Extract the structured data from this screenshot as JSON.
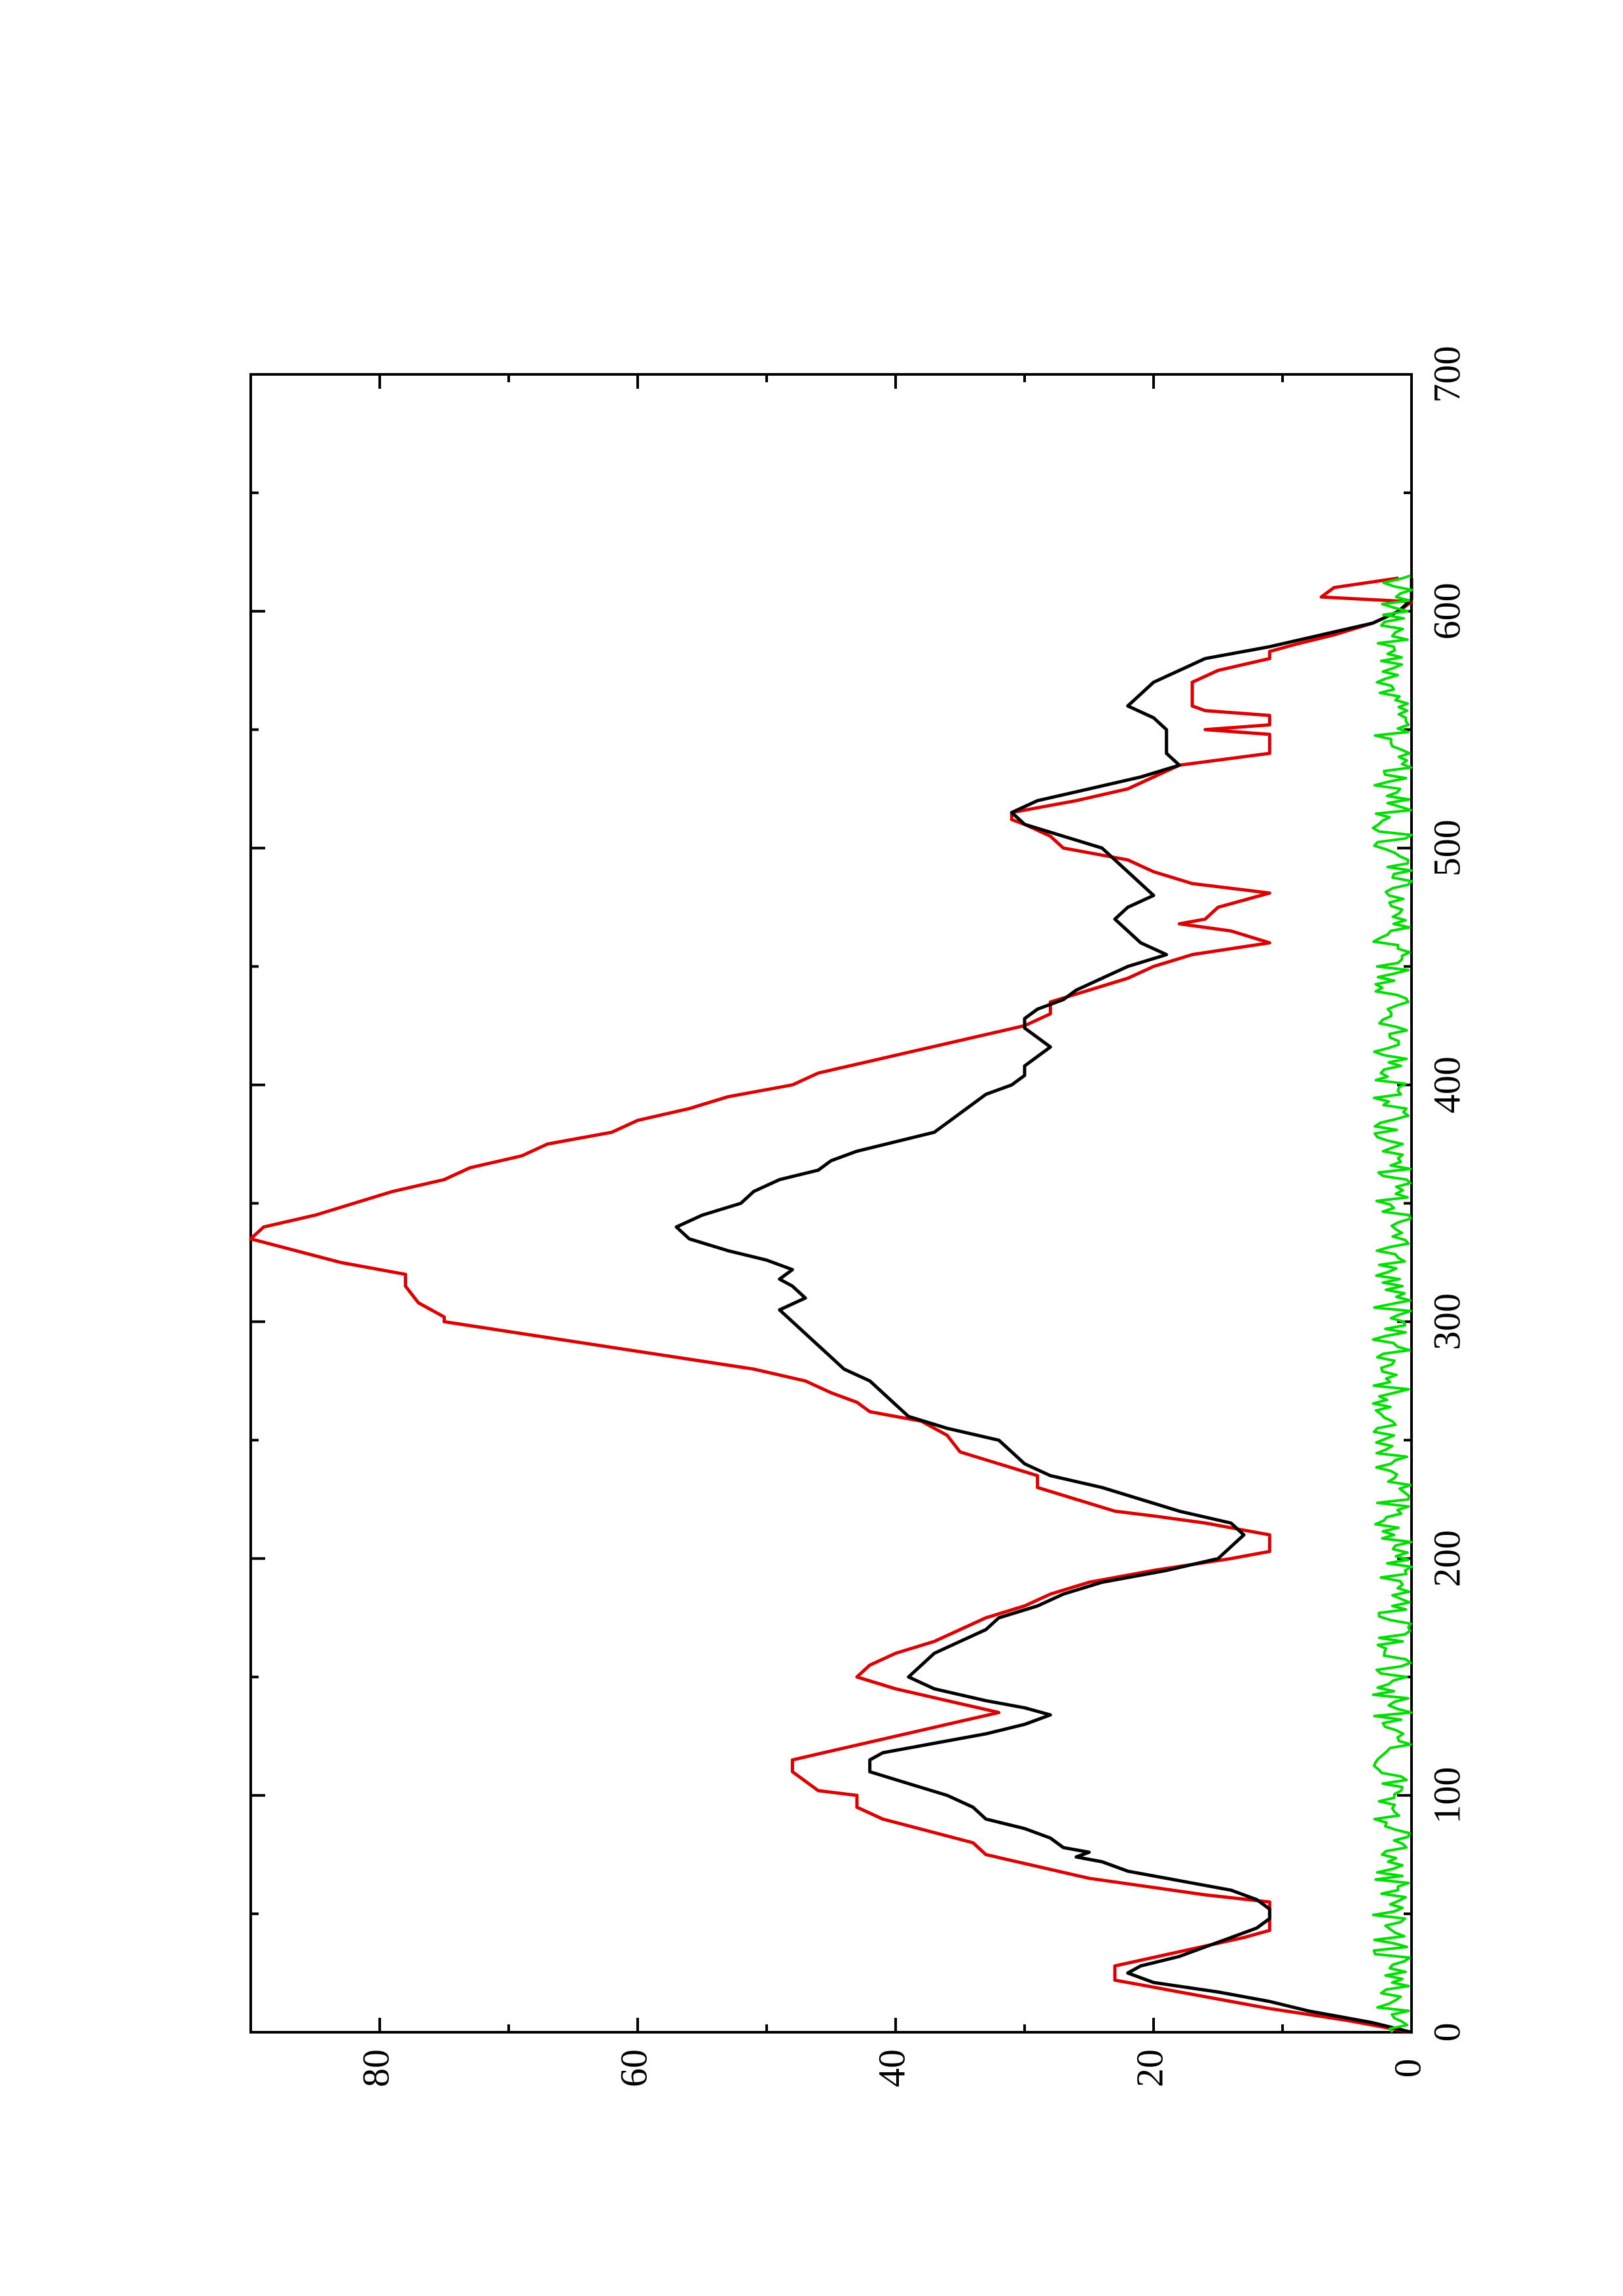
{
  "chart_data": {
    "type": "line",
    "orientation": "rotated-90-ccw",
    "title": "",
    "xlabel": "",
    "ylabel": "",
    "xlim": [
      0,
      700
    ],
    "ylim": [
      0,
      90
    ],
    "grid": false,
    "x_ticks": [
      "0",
      "100",
      "200",
      "300",
      "400",
      "500",
      "600",
      "700"
    ],
    "y_ticks": [
      "0",
      "20",
      "40",
      "60",
      "80"
    ],
    "series": [
      {
        "color": "#dd0000",
        "style": "step-like",
        "points": [
          [
            0,
            0
          ],
          [
            5,
            5
          ],
          [
            10,
            11
          ],
          [
            20,
            21
          ],
          [
            22,
            23
          ],
          [
            28,
            23
          ],
          [
            40,
            13
          ],
          [
            43,
            11
          ],
          [
            55,
            11
          ],
          [
            58,
            16
          ],
          [
            65,
            25
          ],
          [
            70,
            29
          ],
          [
            75,
            33
          ],
          [
            80,
            34
          ],
          [
            90,
            41
          ],
          [
            95,
            43
          ],
          [
            100,
            43
          ],
          [
            102,
            46
          ],
          [
            110,
            48
          ],
          [
            115,
            48
          ],
          [
            125,
            40
          ],
          [
            130,
            36
          ],
          [
            135,
            32
          ],
          [
            140,
            36
          ],
          [
            145,
            40
          ],
          [
            150,
            43
          ],
          [
            155,
            42
          ],
          [
            160,
            40
          ],
          [
            165,
            37
          ],
          [
            170,
            35
          ],
          [
            175,
            33
          ],
          [
            180,
            30
          ],
          [
            185,
            28
          ],
          [
            190,
            25
          ],
          [
            195,
            20
          ],
          [
            200,
            14
          ],
          [
            203,
            11
          ],
          [
            210,
            11
          ],
          [
            215,
            16
          ],
          [
            218,
            20
          ],
          [
            220,
            23
          ],
          [
            225,
            26
          ],
          [
            230,
            29
          ],
          [
            235,
            29
          ],
          [
            245,
            35
          ],
          [
            252,
            36
          ],
          [
            258,
            38
          ],
          [
            262,
            42
          ],
          [
            266,
            43
          ],
          [
            270,
            45
          ],
          [
            275,
            47
          ],
          [
            280,
            51
          ],
          [
            290,
            63
          ],
          [
            300,
            75
          ],
          [
            302,
            75
          ],
          [
            308,
            77
          ],
          [
            315,
            78
          ],
          [
            320,
            78
          ],
          [
            325,
            83
          ],
          [
            335,
            90
          ],
          [
            340,
            89
          ],
          [
            345,
            85
          ],
          [
            350,
            82
          ],
          [
            355,
            79
          ],
          [
            360,
            75
          ],
          [
            365,
            73
          ],
          [
            370,
            69
          ],
          [
            375,
            67
          ],
          [
            380,
            62
          ],
          [
            385,
            60
          ],
          [
            390,
            56
          ],
          [
            395,
            53
          ],
          [
            400,
            48
          ],
          [
            405,
            46
          ],
          [
            410,
            42
          ],
          [
            415,
            38
          ],
          [
            420,
            34
          ],
          [
            425,
            30
          ],
          [
            430,
            28
          ],
          [
            435,
            28
          ],
          [
            440,
            25
          ],
          [
            445,
            22
          ],
          [
            450,
            20
          ],
          [
            455,
            17
          ],
          [
            460,
            11
          ],
          [
            465,
            14
          ],
          [
            468,
            18
          ],
          [
            470,
            16
          ],
          [
            475,
            15
          ],
          [
            478,
            13
          ],
          [
            481,
            11
          ],
          [
            485,
            17
          ],
          [
            490,
            20
          ],
          [
            495,
            22
          ],
          [
            500,
            27
          ],
          [
            505,
            28
          ],
          [
            510,
            30
          ],
          [
            512,
            31
          ],
          [
            515,
            31
          ],
          [
            520,
            26
          ],
          [
            525,
            22
          ],
          [
            530,
            20
          ],
          [
            535,
            18
          ],
          [
            540,
            11
          ],
          [
            542,
            11
          ],
          [
            548,
            11
          ],
          [
            550,
            16
          ],
          [
            552,
            11
          ],
          [
            556,
            11
          ],
          [
            558,
            16
          ],
          [
            560,
            17
          ],
          [
            565,
            17
          ],
          [
            570,
            17
          ],
          [
            575,
            15
          ],
          [
            580,
            11
          ],
          [
            583,
            11
          ],
          [
            586,
            9
          ],
          [
            590,
            6
          ],
          [
            595,
            3
          ],
          [
            600,
            1
          ],
          [
            604,
            0
          ],
          [
            606,
            7
          ],
          [
            610,
            6
          ],
          [
            614,
            1
          ]
        ]
      },
      {
        "color": "#000000",
        "style": "solid",
        "points": [
          [
            0,
            0
          ],
          [
            4,
            3
          ],
          [
            9,
            8
          ],
          [
            13,
            11
          ],
          [
            17,
            15
          ],
          [
            21,
            20
          ],
          [
            25,
            22
          ],
          [
            28,
            21
          ],
          [
            32,
            18
          ],
          [
            36,
            16
          ],
          [
            40,
            14
          ],
          [
            44,
            12
          ],
          [
            48,
            11
          ],
          [
            52,
            11
          ],
          [
            56,
            12
          ],
          [
            60,
            14
          ],
          [
            64,
            18
          ],
          [
            68,
            22
          ],
          [
            72,
            24
          ],
          [
            74,
            26
          ],
          [
            76,
            25
          ],
          [
            78,
            27
          ],
          [
            82,
            28
          ],
          [
            86,
            30
          ],
          [
            90,
            33
          ],
          [
            95,
            34
          ],
          [
            100,
            36
          ],
          [
            105,
            39
          ],
          [
            110,
            42
          ],
          [
            115,
            42
          ],
          [
            118,
            41
          ],
          [
            122,
            37
          ],
          [
            126,
            33
          ],
          [
            130,
            30
          ],
          [
            134,
            28
          ],
          [
            137,
            30
          ],
          [
            140,
            33
          ],
          [
            145,
            37
          ],
          [
            150,
            39
          ],
          [
            155,
            38
          ],
          [
            160,
            37
          ],
          [
            165,
            35
          ],
          [
            170,
            33
          ],
          [
            175,
            32
          ],
          [
            180,
            29
          ],
          [
            185,
            27
          ],
          [
            190,
            24
          ],
          [
            195,
            19
          ],
          [
            200,
            15
          ],
          [
            205,
            14
          ],
          [
            210,
            13
          ],
          [
            215,
            14
          ],
          [
            220,
            18
          ],
          [
            225,
            21
          ],
          [
            230,
            24
          ],
          [
            235,
            28
          ],
          [
            240,
            30
          ],
          [
            245,
            31
          ],
          [
            250,
            32
          ],
          [
            255,
            36
          ],
          [
            260,
            39
          ],
          [
            265,
            40
          ],
          [
            270,
            41
          ],
          [
            275,
            42
          ],
          [
            280,
            44
          ],
          [
            285,
            45
          ],
          [
            290,
            46
          ],
          [
            295,
            47
          ],
          [
            300,
            48
          ],
          [
            305,
            49
          ],
          [
            310,
            47
          ],
          [
            315,
            48
          ],
          [
            318,
            49
          ],
          [
            322,
            48
          ],
          [
            326,
            50
          ],
          [
            330,
            53
          ],
          [
            335,
            56
          ],
          [
            340,
            57
          ],
          [
            345,
            55
          ],
          [
            350,
            52
          ],
          [
            355,
            51
          ],
          [
            360,
            49
          ],
          [
            364,
            46
          ],
          [
            368,
            45
          ],
          [
            372,
            43
          ],
          [
            376,
            40
          ],
          [
            380,
            37
          ],
          [
            384,
            36
          ],
          [
            388,
            35
          ],
          [
            392,
            34
          ],
          [
            396,
            33
          ],
          [
            400,
            31
          ],
          [
            404,
            30
          ],
          [
            408,
            30
          ],
          [
            412,
            29
          ],
          [
            416,
            28
          ],
          [
            420,
            29
          ],
          [
            424,
            30
          ],
          [
            428,
            30
          ],
          [
            432,
            29
          ],
          [
            436,
            27
          ],
          [
            440,
            26
          ],
          [
            445,
            24
          ],
          [
            450,
            22
          ],
          [
            455,
            19
          ],
          [
            460,
            21
          ],
          [
            465,
            22
          ],
          [
            470,
            23
          ],
          [
            475,
            22
          ],
          [
            480,
            20
          ],
          [
            485,
            21
          ],
          [
            490,
            22
          ],
          [
            495,
            23
          ],
          [
            500,
            24
          ],
          [
            505,
            27
          ],
          [
            510,
            30
          ],
          [
            515,
            31
          ],
          [
            520,
            29
          ],
          [
            525,
            25
          ],
          [
            530,
            21
          ],
          [
            535,
            18
          ],
          [
            540,
            19
          ],
          [
            545,
            19
          ],
          [
            550,
            19
          ],
          [
            555,
            20
          ],
          [
            560,
            22
          ],
          [
            565,
            21
          ],
          [
            570,
            20
          ],
          [
            575,
            18
          ],
          [
            580,
            16
          ],
          [
            585,
            11
          ],
          [
            590,
            7
          ],
          [
            595,
            3
          ],
          [
            600,
            1
          ],
          [
            605,
            0
          ],
          [
            610,
            0
          ],
          [
            614,
            0
          ]
        ]
      },
      {
        "color": "#00dd00",
        "style": "noisy-baseline",
        "points": []
      }
    ]
  }
}
